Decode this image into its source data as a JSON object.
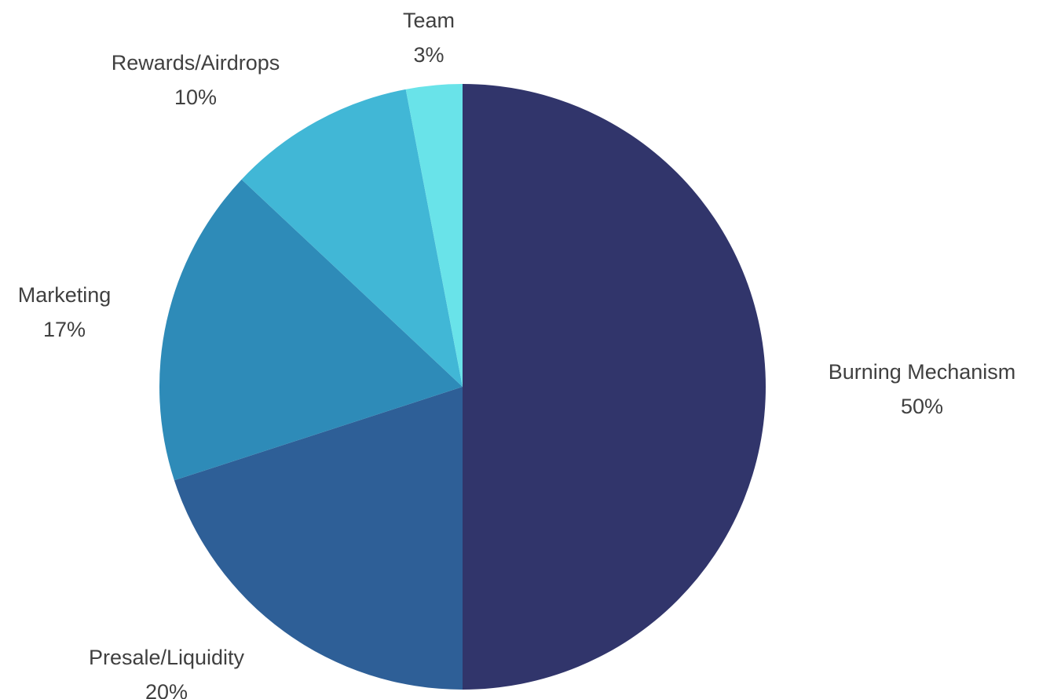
{
  "chart_data": {
    "type": "pie",
    "title": "",
    "start_angle_deg": 0,
    "direction": "clockwise",
    "slices": [
      {
        "label": "Burning Mechanism",
        "value": 50,
        "value_label": "50%",
        "color": "#31356b"
      },
      {
        "label": "Presale/Liquidity",
        "value": 20,
        "value_label": "20%",
        "color": "#2e5f97"
      },
      {
        "label": "Marketing",
        "value": 17,
        "value_label": "17%",
        "color": "#2e8bb8"
      },
      {
        "label": "Rewards/Airdrops",
        "value": 10,
        "value_label": "10%",
        "color": "#41b7d6"
      },
      {
        "label": "Team",
        "value": 3,
        "value_label": "3%",
        "color": "#69e3e9"
      }
    ]
  }
}
